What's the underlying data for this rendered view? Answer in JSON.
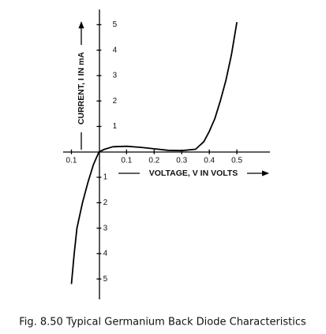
{
  "chart_data": {
    "type": "line",
    "caption": "Fig. 8.50  Typical Germanium Back Diode Characteristics",
    "xlabel": "VOLTAGE, V IN VOLTS",
    "ylabel": "CURRENT, I IN mA",
    "series": [
      {
        "name": "Back diode",
        "color": "#000000",
        "x": [
          -0.1,
          -0.09,
          -0.08,
          -0.06,
          -0.04,
          -0.02,
          0,
          0.02,
          0.05,
          0.1,
          0.15,
          0.2,
          0.25,
          0.3,
          0.35,
          0.38,
          0.4,
          0.42,
          0.44,
          0.46,
          0.48,
          0.5
        ],
        "values": [
          -5.2,
          -4,
          -3,
          -2,
          -1.2,
          -0.5,
          0,
          0.1,
          0.2,
          0.22,
          0.18,
          0.12,
          0.06,
          0.05,
          0.1,
          0.4,
          0.8,
          1.3,
          2,
          2.8,
          3.8,
          5.1
        ]
      }
    ],
    "xlim": [
      -0.13,
      0.62
    ],
    "ylim": [
      -5.8,
      5.6
    ],
    "xticks": [
      {
        "value": -0.1,
        "label": "0.1"
      },
      0.1,
      0.2,
      0.3,
      0.4,
      0.5
    ],
    "yticks": [
      {
        "value": -5,
        "label": "5"
      },
      {
        "value": -4,
        "label": "4"
      },
      {
        "value": -3,
        "label": "3"
      },
      {
        "value": -2,
        "label": "2"
      },
      {
        "value": -1,
        "label": "1"
      },
      1,
      2,
      3,
      4,
      5
    ]
  }
}
